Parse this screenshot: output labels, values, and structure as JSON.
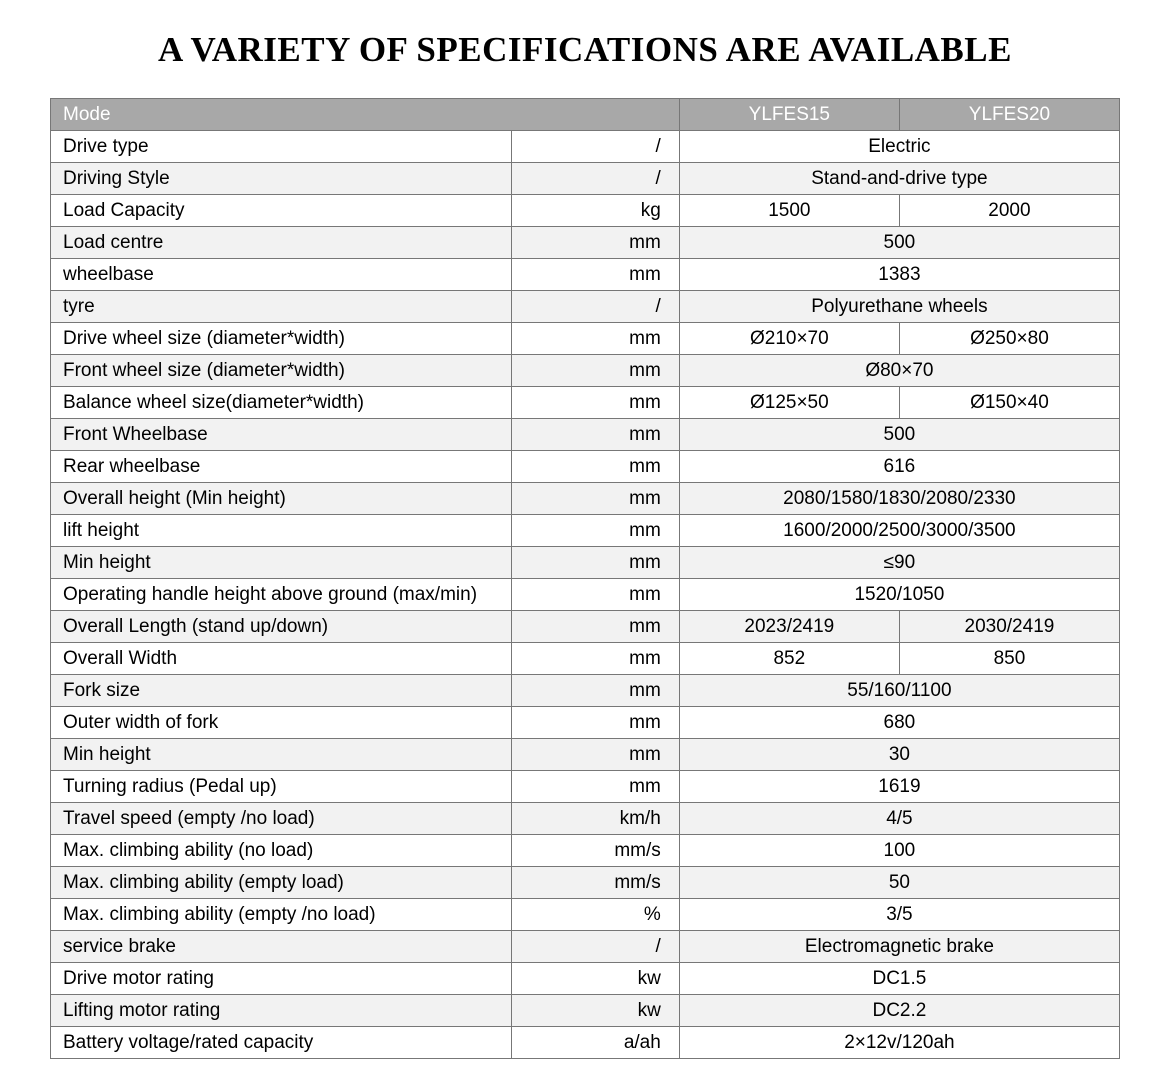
{
  "title": "A VARIETY OF SPECIFICATIONS ARE AVAILABLE",
  "table": {
    "header": {
      "mode_label": "Mode",
      "model_a": "YLFES15",
      "model_b": "YLFES20"
    },
    "header_bg": "#a8a8a8",
    "header_fg": "#ffffff",
    "row_bg_alt": "#f2f2f2",
    "border_color": "#777777",
    "font_size_pt": 14,
    "rows": [
      {
        "label": "Drive type",
        "unit": "/",
        "val": "Electric",
        "span": true
      },
      {
        "label": "Driving Style",
        "unit": "/",
        "val": "Stand-and-drive type",
        "span": true
      },
      {
        "label": "Load Capacity",
        "unit": "kg",
        "val_a": "1500",
        "val_b": "2000"
      },
      {
        "label": "Load centre",
        "unit": "mm",
        "val": "500",
        "span": true
      },
      {
        "label": "wheelbase",
        "unit": "mm",
        "val": "1383",
        "span": true
      },
      {
        "label": "tyre",
        "unit": "/",
        "val": "Polyurethane wheels",
        "span": true
      },
      {
        "label": "Drive wheel size (diameter*width)",
        "unit": "mm",
        "val_a": "Ø210×70",
        "val_b": "Ø250×80"
      },
      {
        "label": "Front wheel size (diameter*width)",
        "unit": "mm",
        "val": "Ø80×70",
        "span": true
      },
      {
        "label": "Balance wheel size(diameter*width)",
        "unit": "mm",
        "val_a": "Ø125×50",
        "val_b": "Ø150×40"
      },
      {
        "label": "Front Wheelbase",
        "unit": "mm",
        "val": "500",
        "span": true
      },
      {
        "label": "Rear wheelbase",
        "unit": "mm",
        "val": "616",
        "span": true
      },
      {
        "label": "Overall height (Min height)",
        "unit": "mm",
        "val": "2080/1580/1830/2080/2330",
        "span": true
      },
      {
        "label": "lift height",
        "unit": "mm",
        "val": "1600/2000/2500/3000/3500",
        "span": true
      },
      {
        "label": "Min height",
        "unit": "mm",
        "val": "≤90",
        "span": true
      },
      {
        "label": "Operating handle height above ground (max/min)",
        "unit": "mm",
        "val": "1520/1050",
        "span": true
      },
      {
        "label": "Overall Length  (stand up/down)",
        "unit": "mm",
        "val_a": "2023/2419",
        "val_b": "2030/2419"
      },
      {
        "label": "Overall Width",
        "unit": "mm",
        "val_a": "852",
        "val_b": "850"
      },
      {
        "label": "Fork size",
        "unit": "mm",
        "val": "55/160/1100",
        "span": true
      },
      {
        "label": "Outer width of fork",
        "unit": "mm",
        "val": "680",
        "span": true
      },
      {
        "label": "Min height",
        "unit": "mm",
        "val": "30",
        "span": true
      },
      {
        "label": "Turning radius (Pedal up)",
        "unit": "mm",
        "val": "1619",
        "span": true
      },
      {
        "label": "Travel speed (empty /no load)",
        "unit": "km/h",
        "val": "4/5",
        "span": true
      },
      {
        "label": "Max. climbing ability (no load)",
        "unit": "mm/s",
        "val": "100",
        "span": true
      },
      {
        "label": "Max. climbing ability (empty load)",
        "unit": "mm/s",
        "val": "50",
        "span": true
      },
      {
        "label": "Max. climbing ability (empty /no load)",
        "unit": "%",
        "val": "3/5",
        "span": true
      },
      {
        "label": "service  brake",
        "unit": "/",
        "val": "Electromagnetic brake",
        "span": true
      },
      {
        "label": "Drive motor rating",
        "unit": "kw",
        "val": "DC1.5",
        "span": true
      },
      {
        "label": "Lifting motor rating",
        "unit": "kw",
        "val": "DC2.2",
        "span": true
      },
      {
        "label": "Battery voltage/rated capacity",
        "unit": "a/ah",
        "val": "2×12v/120ah",
        "span": true
      }
    ]
  }
}
